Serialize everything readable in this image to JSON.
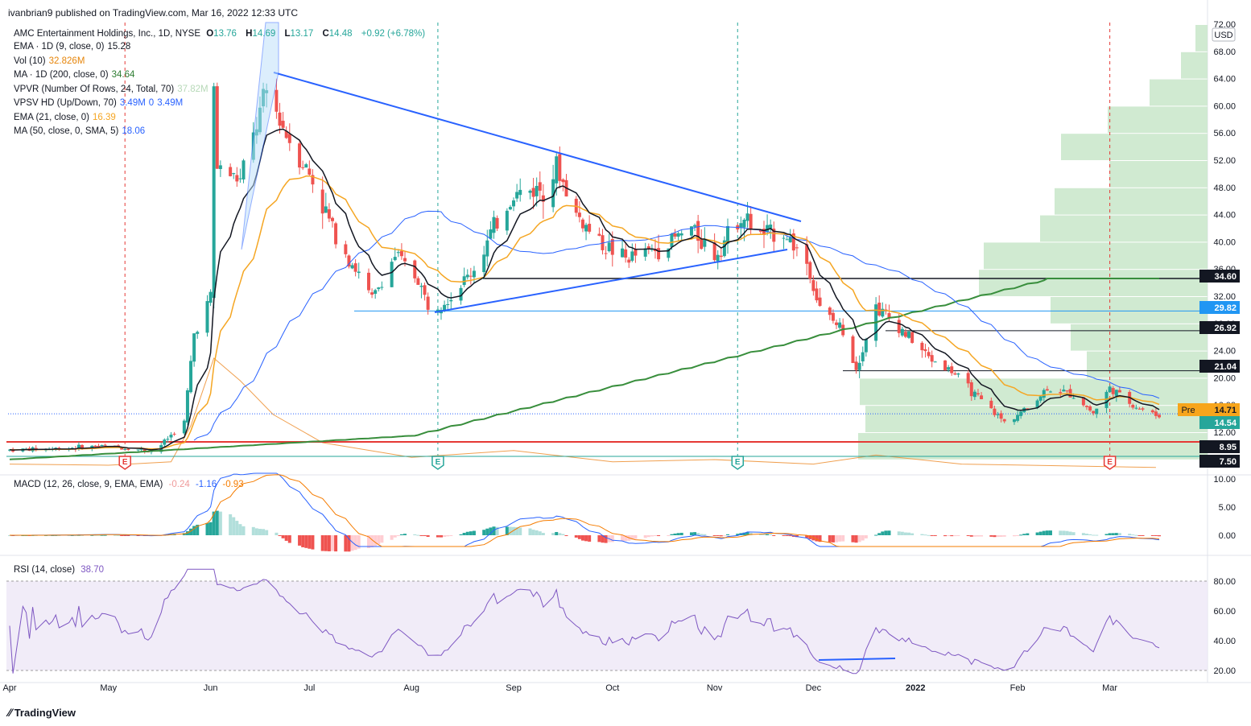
{
  "header": {
    "published": "ivanbrian9 published on TradingView.com, Mar 16, 2022 12:33 UTC"
  },
  "legend": {
    "main": {
      "symbol": "AMC Entertainment Holdings, Inc., 1D, NYSE",
      "o_label": "O",
      "o": "13.76",
      "h_label": "H",
      "h": "14.69",
      "l_label": "L",
      "l": "13.17",
      "c_label": "C",
      "c": "14.48",
      "change": "+0.92 (+6.78%)"
    },
    "indicators": [
      {
        "name": "EMA · 1D (9, close, 0)",
        "value": "15.28",
        "color": "#131722"
      },
      {
        "name": "Vol (10)",
        "value": "32.826M",
        "color": "#e6850a"
      },
      {
        "name": "MA · 1D (200, close, 0)",
        "value": "34.64",
        "color": "#2e7d32"
      },
      {
        "name": "VPVR (Number Of Rows, 24, Total, 70)",
        "value": "37.82M",
        "color": "#b7d9b8"
      },
      {
        "name": "VPSV HD (Up/Down, 70)",
        "value": "3.49M",
        "value2": "0",
        "value3": "3.49M",
        "color": "#2962ff"
      },
      {
        "name": "EMA (21, close, 0)",
        "value": "16.39",
        "color": "#f5a623"
      },
      {
        "name": "MA (50, close, 0, SMA, 5)",
        "value": "18.06",
        "color": "#2962ff"
      }
    ],
    "macd": {
      "name": "MACD (12, 26, close, 9, EMA, EMA)",
      "hist": "-0.24",
      "macd": "-1.16",
      "signal": "-0.93"
    },
    "rsi": {
      "name": "RSI (14, close)",
      "value": "38.70"
    }
  },
  "axis": {
    "currency": "USD",
    "price_ticks": [
      "72.00",
      "68.00",
      "64.00",
      "60.00",
      "56.00",
      "52.00",
      "48.00",
      "44.00",
      "40.00",
      "36.00",
      "32.00",
      "28.00",
      "24.00",
      "20.00",
      "16.00",
      "12.00"
    ],
    "macd_ticks": [
      "10.00",
      "5.00",
      "0.00"
    ],
    "rsi_ticks": [
      "80.00",
      "60.00",
      "40.00",
      "20.00"
    ],
    "time_labels": [
      "Apr",
      "May",
      "Jun",
      "Jul",
      "Aug",
      "Sep",
      "Oct",
      "Nov",
      "Dec",
      "2022",
      "Feb",
      "Mar"
    ]
  },
  "price_badges": [
    {
      "label": "34.60",
      "bg": "#131722",
      "fg": "#ffffff"
    },
    {
      "label": "29.82",
      "bg": "#2196f3",
      "fg": "#ffffff"
    },
    {
      "label": "26.92",
      "bg": "#131722",
      "fg": "#ffffff"
    },
    {
      "label": "21.04",
      "bg": "#131722",
      "fg": "#ffffff"
    },
    {
      "label": "14.71",
      "bg": "#f7a51c",
      "fg": "#131722"
    },
    {
      "label": "14.54",
      "bg": "#26a69a",
      "fg": "#ffffff"
    },
    {
      "label": "8.95",
      "bg": "#131722",
      "fg": "#ffffff"
    },
    {
      "label": "7.50",
      "bg": "#131722",
      "fg": "#ffffff"
    }
  ],
  "pre_market_label": "Pre",
  "earnings_marker": "E",
  "branding": "TradingView",
  "colors": {
    "up": "#26a69a",
    "down": "#ef5350",
    "ema9": "#131722",
    "ema21": "#f5a623",
    "ma50": "#2962ff",
    "ma200": "#388e3c",
    "macd": "#2962ff",
    "signal": "#f57c00",
    "rsi": "#7e57c2",
    "vp": "#c8e6c9"
  },
  "chart_data": {
    "type": "candlestick",
    "symbol": "AMC",
    "interval": "1D",
    "exchange": "NYSE",
    "x_range": [
      "2021-04-01",
      "2022-03-16"
    ],
    "y_range": [
      12,
      72
    ],
    "horizontal_levels": [
      34.6,
      29.82,
      26.92,
      21.04,
      14.71,
      14.54,
      8.95,
      7.5
    ],
    "close_series": [
      {
        "date": "2021-04-01",
        "close": 9.4
      },
      {
        "date": "2021-04-15",
        "close": 9.6
      },
      {
        "date": "2021-04-30",
        "close": 10.0
      },
      {
        "date": "2021-05-15",
        "close": 9.2
      },
      {
        "date": "2021-05-24",
        "close": 13.5
      },
      {
        "date": "2021-05-27",
        "close": 26.5
      },
      {
        "date": "2021-06-01",
        "close": 32.0
      },
      {
        "date": "2021-06-02",
        "close": 62.5
      },
      {
        "date": "2021-06-03",
        "close": 51.0
      },
      {
        "date": "2021-06-10",
        "close": 49.0
      },
      {
        "date": "2021-06-18",
        "close": 62.0
      },
      {
        "date": "2021-06-25",
        "close": 55.0
      },
      {
        "date": "2021-07-01",
        "close": 50.0
      },
      {
        "date": "2021-07-08",
        "close": 42.0
      },
      {
        "date": "2021-07-15",
        "close": 36.0
      },
      {
        "date": "2021-07-20",
        "close": 31.5
      },
      {
        "date": "2021-07-27",
        "close": 38.0
      },
      {
        "date": "2021-08-03",
        "close": 34.5
      },
      {
        "date": "2021-08-06",
        "close": 30.5
      },
      {
        "date": "2021-08-13",
        "close": 32.0
      },
      {
        "date": "2021-08-20",
        "close": 36.0
      },
      {
        "date": "2021-08-26",
        "close": 42.0
      },
      {
        "date": "2021-09-01",
        "close": 47.0
      },
      {
        "date": "2021-09-10",
        "close": 48.0
      },
      {
        "date": "2021-09-14",
        "close": 51.0
      },
      {
        "date": "2021-09-20",
        "close": 44.0
      },
      {
        "date": "2021-09-27",
        "close": 40.0
      },
      {
        "date": "2021-10-05",
        "close": 37.5
      },
      {
        "date": "2021-10-15",
        "close": 39.0
      },
      {
        "date": "2021-10-25",
        "close": 42.0
      },
      {
        "date": "2021-11-01",
        "close": 38.0
      },
      {
        "date": "2021-11-09",
        "close": 44.0
      },
      {
        "date": "2021-11-15",
        "close": 41.0
      },
      {
        "date": "2021-11-22",
        "close": 41.5
      },
      {
        "date": "2021-11-29",
        "close": 37.0
      },
      {
        "date": "2021-12-03",
        "close": 30.0
      },
      {
        "date": "2021-12-10",
        "close": 27.0
      },
      {
        "date": "2021-12-14",
        "close": 21.5
      },
      {
        "date": "2021-12-20",
        "close": 30.5
      },
      {
        "date": "2021-12-28",
        "close": 27.0
      },
      {
        "date": "2022-01-05",
        "close": 23.0
      },
      {
        "date": "2022-01-12",
        "close": 21.0
      },
      {
        "date": "2022-01-20",
        "close": 17.0
      },
      {
        "date": "2022-01-28",
        "close": 13.5
      },
      {
        "date": "2022-02-04",
        "close": 15.5
      },
      {
        "date": "2022-02-10",
        "close": 18.5
      },
      {
        "date": "2022-02-18",
        "close": 17.5
      },
      {
        "date": "2022-02-24",
        "close": 14.8
      },
      {
        "date": "2022-03-01",
        "close": 18.5
      },
      {
        "date": "2022-03-08",
        "close": 16.0
      },
      {
        "date": "2022-03-15",
        "close": 14.48
      }
    ],
    "earnings_dates": [
      "2021-05-06",
      "2021-08-09",
      "2021-11-08",
      "2022-03-01"
    ],
    "macd_range": [
      -2,
      12
    ],
    "rsi_range": [
      18,
      88
    ],
    "rsi_levels": [
      80,
      60,
      40,
      20
    ]
  }
}
